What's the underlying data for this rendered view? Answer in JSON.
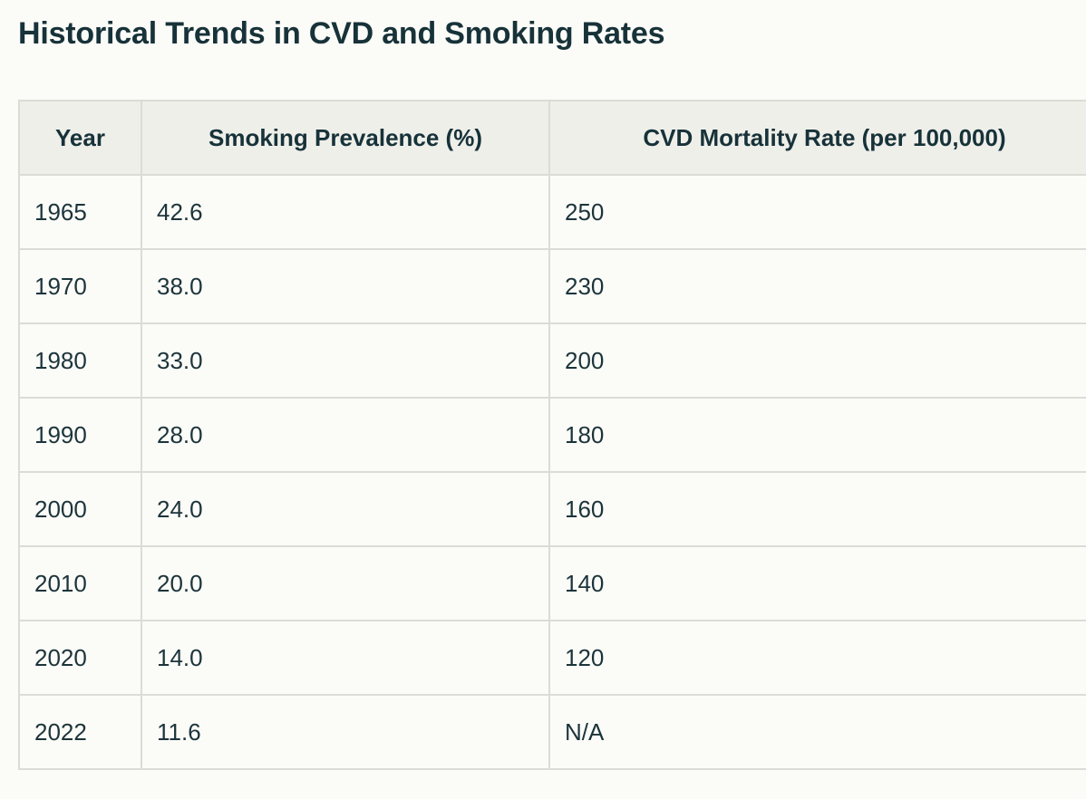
{
  "title": "Historical Trends in CVD and Smoking Rates",
  "table": {
    "headers": [
      "Year",
      "Smoking Prevalence (%)",
      "CVD Mortality Rate (per 100,000)"
    ],
    "rows": [
      [
        "1965",
        "42.6",
        "250"
      ],
      [
        "1970",
        "38.0",
        "230"
      ],
      [
        "1980",
        "33.0",
        "200"
      ],
      [
        "1990",
        "28.0",
        "180"
      ],
      [
        "2000",
        "24.0",
        "160"
      ],
      [
        "2010",
        "20.0",
        "140"
      ],
      [
        "2020",
        "14.0",
        "120"
      ],
      [
        "2022",
        "11.6",
        "N/A"
      ]
    ]
  }
}
